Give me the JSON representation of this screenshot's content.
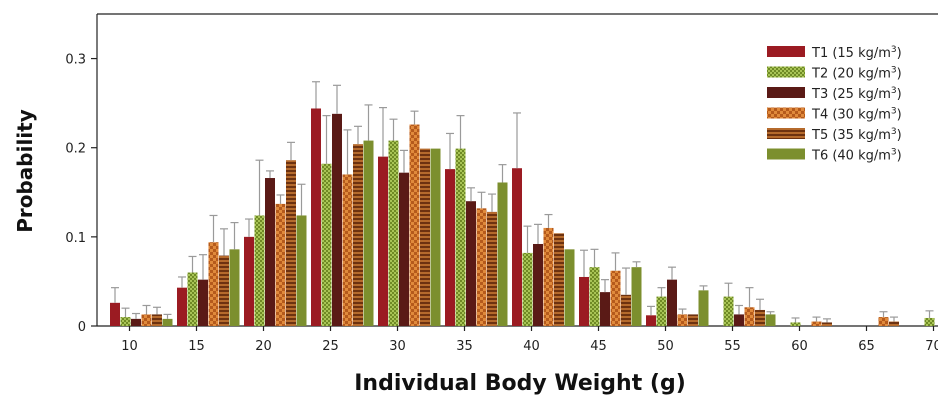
{
  "chart_data": {
    "type": "bar",
    "xlabel": "Individual Body Weight (g)",
    "ylabel": "Probability",
    "ylim": [
      0,
      0.35
    ],
    "yticks": [
      0,
      0.1,
      0.2,
      0.3
    ],
    "ytick_labels": [
      "0",
      "0.1",
      "0.2",
      "0.3"
    ],
    "categories": [
      "10",
      "15",
      "20",
      "25",
      "30",
      "35",
      "40",
      "45",
      "50",
      "55",
      "60",
      "65",
      "70"
    ],
    "grid": false,
    "error_bars": true,
    "legend_position": "top-right",
    "series": [
      {
        "name": "T1 (15 kg/m",
        "sup": "3",
        "tail": ")",
        "color": "#9b1b22",
        "pattern": "solid",
        "values": [
          0.026,
          0.043,
          0.1,
          0.244,
          0.19,
          0.176,
          0.177,
          0.055,
          0.012,
          0.0,
          0.0,
          0.0,
          0.0
        ],
        "errors": [
          0.017,
          0.012,
          0.02,
          0.03,
          0.055,
          0.04,
          0.062,
          0.03,
          0.01,
          0.0,
          0.0,
          0.0,
          0.0
        ]
      },
      {
        "name": "T2 (20 kg/m",
        "sup": "3",
        "tail": ")",
        "color": "#8fae3a",
        "pattern": "dots",
        "values": [
          0.01,
          0.06,
          0.124,
          0.182,
          0.208,
          0.199,
          0.082,
          0.066,
          0.033,
          0.033,
          0.004,
          0.0,
          0.009
        ],
        "errors": [
          0.01,
          0.018,
          0.062,
          0.054,
          0.024,
          0.037,
          0.03,
          0.02,
          0.01,
          0.015,
          0.005,
          0.0,
          0.008
        ]
      },
      {
        "name": "T3 (25 kg/m",
        "sup": "3",
        "tail": ")",
        "color": "#5a1a16",
        "pattern": "solid",
        "values": [
          0.008,
          0.052,
          0.166,
          0.238,
          0.172,
          0.14,
          0.092,
          0.038,
          0.052,
          0.013,
          0.0,
          0.0,
          0.0
        ],
        "errors": [
          0.006,
          0.028,
          0.008,
          0.032,
          0.025,
          0.015,
          0.022,
          0.014,
          0.014,
          0.01,
          0.0,
          0.0,
          0.0
        ]
      },
      {
        "name": "T4 (30 kg/m",
        "sup": "3",
        "tail": ")",
        "color": "#d9772f",
        "pattern": "checker",
        "values": [
          0.013,
          0.094,
          0.137,
          0.17,
          0.226,
          0.132,
          0.11,
          0.062,
          0.013,
          0.021,
          0.005,
          0.01,
          0.005
        ],
        "errors": [
          0.01,
          0.03,
          0.01,
          0.05,
          0.015,
          0.018,
          0.015,
          0.02,
          0.006,
          0.022,
          0.005,
          0.006,
          0.005
        ]
      },
      {
        "name": "T5 (35 kg/m",
        "sup": "3",
        "tail": ")",
        "color": "#8a4416",
        "pattern": "hstripes",
        "values": [
          0.013,
          0.079,
          0.186,
          0.204,
          0.199,
          0.128,
          0.104,
          0.035,
          0.013,
          0.018,
          0.004,
          0.005,
          0.004
        ],
        "errors": [
          0.008,
          0.03,
          0.02,
          0.02,
          0.0,
          0.02,
          0.0,
          0.03,
          0.0,
          0.012,
          0.004,
          0.005,
          0.004
        ]
      },
      {
        "name": "T6 (40 kg/m",
        "sup": "3",
        "tail": ")",
        "color": "#7c8f2e",
        "pattern": "solid",
        "values": [
          0.008,
          0.086,
          0.124,
          0.208,
          0.199,
          0.161,
          0.086,
          0.066,
          0.04,
          0.013,
          0.0,
          0.0,
          0.0
        ],
        "errors": [
          0.005,
          0.03,
          0.035,
          0.04,
          0.0,
          0.02,
          0.0,
          0.006,
          0.005,
          0.003,
          0.0,
          0.0,
          0.0
        ]
      }
    ]
  }
}
